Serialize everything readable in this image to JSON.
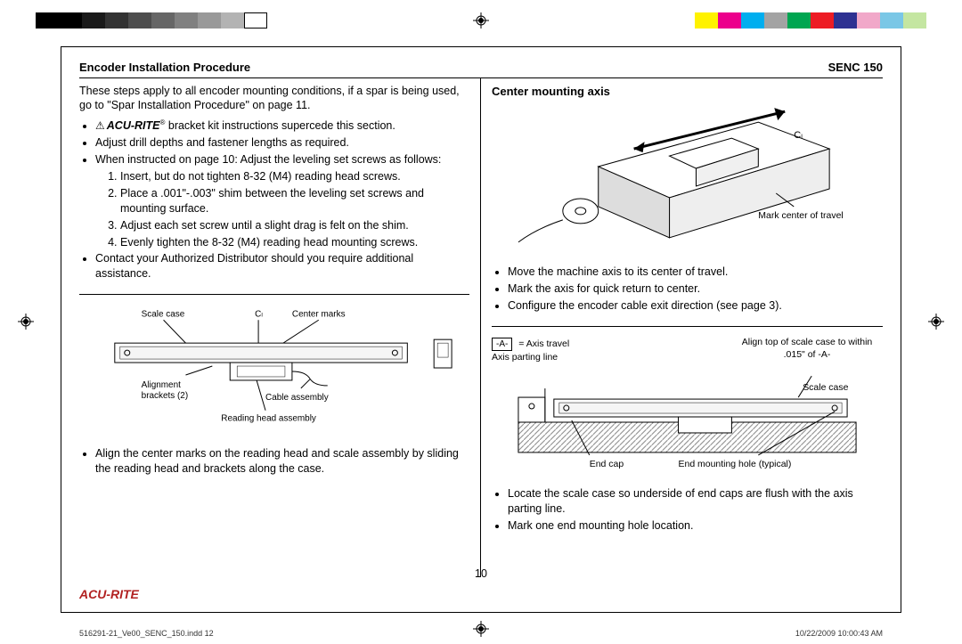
{
  "colorbars": {
    "left": [
      "#000000",
      "#000000",
      "#1a1a1a",
      "#333333",
      "#4d4d4d",
      "#666666",
      "#808080",
      "#999999",
      "#b3b3b3",
      "#ffffff"
    ],
    "right": [
      "#fff200",
      "#ec008c",
      "#00aeef",
      "#a3a3a3",
      "#00a651",
      "#ed1c24",
      "#2e3192",
      "#f1a8c9",
      "#7ac7e6",
      "#c4e6a1"
    ]
  },
  "header": {
    "title": "Encoder Installation Procedure",
    "model": "SENC 150"
  },
  "leftcol": {
    "intro": "These steps apply to all encoder mounting conditions, if a spar is being used, go to \"Spar Installation Procedure\" on page 11.",
    "bullets1": [
      {
        "warn": true,
        "brand": "ACU-RITE",
        "suffix": " bracket kit instructions supercede this section."
      },
      {
        "text": "Adjust drill depths and fastener lengths as required."
      },
      {
        "text": "When instructed on page 10: Adjust the leveling  set screws as follows:",
        "sub": [
          "Insert, but do not tighten 8-32 (M4) reading head screws.",
          "Place a .001\"-.003\" shim between the leveling set screws and mounting surface.",
          "Adjust each set screw until a slight drag is felt on the shim.",
          "Evenly tighten the 8-32 (M4) reading head mounting screws."
        ]
      },
      {
        "text": "Contact your Authorized Distributor should you require additional assistance."
      }
    ],
    "diagram1_labels": {
      "scale_case": "Scale case",
      "center_marks": "Center marks",
      "cl": "Cₗ",
      "alignment": "Alignment brackets (2)",
      "cable": "Cable assembly",
      "reading_head": "Reading head assembly"
    },
    "bullets2": [
      "Align the center marks on the reading head and scale assembly by sliding the reading head and brackets along the case."
    ]
  },
  "rightcol": {
    "subtitle": "Center mounting axis",
    "diagram2_labels": {
      "cl": "Cₗ",
      "mark_center": "Mark center of travel"
    },
    "bullets1": [
      "Move the machine axis to its center of travel.",
      "Mark the axis for quick return to center.",
      "Configure the encoder cable exit direction (see page 3)."
    ],
    "axis_key": {
      "box": "-A-",
      "text": "= Axis travel"
    },
    "align_note": "Align top of scale case to within .015\" of -A-",
    "diagram3_labels": {
      "axis_parting": "Axis parting line",
      "scale_case": "Scale case",
      "end_cap": "End cap",
      "end_hole": "End mounting hole (typical)"
    },
    "bullets2": [
      "Locate the scale case so underside of end caps are flush with the axis parting line.",
      "Mark one end mounting hole location."
    ]
  },
  "page_number": "10",
  "footer_brand": "ACU-RITE",
  "meta": {
    "file": "516291-21_Ve00_SENC_150.indd   12",
    "stamp": "10/22/2009   10:00:43 AM"
  }
}
